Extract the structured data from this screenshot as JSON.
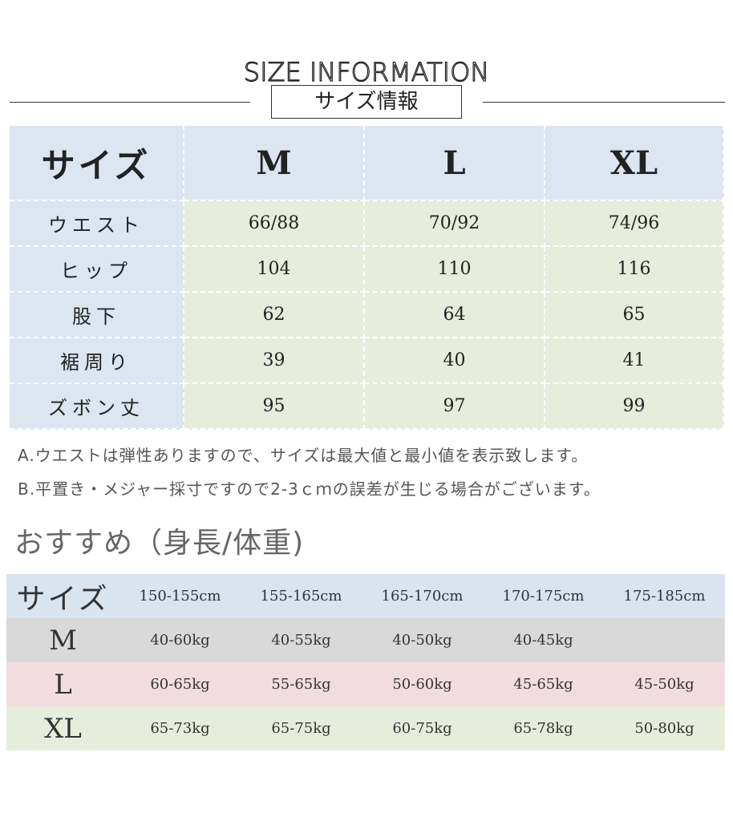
{
  "header": {
    "title_en": "SIZE INFORMATION",
    "title_jp": "サイズ情報"
  },
  "size_table": {
    "header": [
      "サイズ",
      "M",
      "L",
      "XL"
    ],
    "rows": [
      {
        "label": "ウエスト",
        "values": [
          "66/88",
          "70/92",
          "74/96"
        ]
      },
      {
        "label": "ヒップ",
        "values": [
          "104",
          "110",
          "116"
        ]
      },
      {
        "label": "股下",
        "values": [
          "62",
          "64",
          "65"
        ]
      },
      {
        "label": "裾周り",
        "values": [
          "39",
          "40",
          "41"
        ]
      },
      {
        "label": "ズボン丈",
        "values": [
          "95",
          "97",
          "99"
        ]
      }
    ]
  },
  "notes": {
    "a": "A.ウエストは弾性ありますので、サイズは最大値と最小値を表示致します。",
    "b": "B.平置き・メジャー採寸ですので2-3ｃｍの誤差が生じる場合がございます。"
  },
  "recommend": {
    "title": "おすすめ（身長/体重)",
    "header": [
      "サイズ",
      "150-155cm",
      "155-165cm",
      "165-170cm",
      "170-175cm",
      "175-185cm"
    ],
    "rows": [
      {
        "label": "M",
        "values": [
          "40-60kg",
          "40-55kg",
          "40-50kg",
          "40-45kg",
          ""
        ]
      },
      {
        "label": "L",
        "values": [
          "60-65kg",
          "55-65kg",
          "50-60kg",
          "45-65kg",
          "45-50kg"
        ]
      },
      {
        "label": "XL",
        "values": [
          "65-73kg",
          "65-75kg",
          "60-75kg",
          "65-78kg",
          "50-80kg"
        ]
      }
    ]
  },
  "colors": {
    "blue": "#dce5f0",
    "green": "#e7eddb",
    "gray": "#d9d9d9",
    "pink": "#f3dcdf"
  }
}
